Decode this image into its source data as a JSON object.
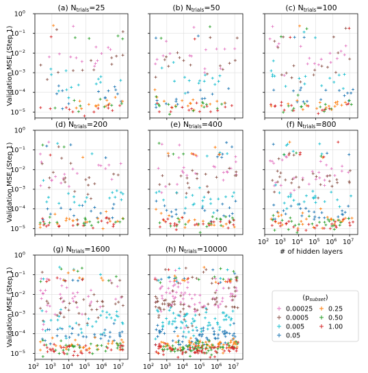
{
  "figure": {
    "ylabel": "Validation MSE (Step 1)",
    "xlabel": "# of hidden layers"
  },
  "legend": {
    "title": "(p",
    "title_sub": "subset",
    "title_close": ")",
    "placement": "lower-right-empty-panel",
    "entries": [
      {
        "label": "0.00025",
        "color": "#e377c2"
      },
      {
        "label": "0.25",
        "color": "#ff7f0e"
      },
      {
        "label": "0.0005",
        "color": "#8c564b"
      },
      {
        "label": "0.50",
        "color": "#2ca02c"
      },
      {
        "label": "0.005",
        "color": "#17becf"
      },
      {
        "label": "1.00",
        "color": "#d62728"
      },
      {
        "label": "0.05",
        "color": "#1f77b4"
      }
    ]
  },
  "chart_data": [
    {
      "type": "scatter",
      "title": "(a) N",
      "title_sub": "trials",
      "title_value": "=25",
      "n_trials": 25,
      "xscale": "log",
      "yscale": "log",
      "xlim": [
        100,
        30000000
      ],
      "ylim": [
        5e-06,
        1
      ],
      "grid": true,
      "show_ylabel": true,
      "show_xlabel": false
    },
    {
      "type": "scatter",
      "title": "(b) N",
      "title_sub": "trials",
      "title_value": "=50",
      "n_trials": 50,
      "xscale": "log",
      "yscale": "log",
      "xlim": [
        100,
        30000000
      ],
      "ylim": [
        5e-06,
        1
      ],
      "grid": true,
      "show_ylabel": false,
      "show_xlabel": false
    },
    {
      "type": "scatter",
      "title": "(c) N",
      "title_sub": "trials",
      "title_value": "=100",
      "n_trials": 100,
      "xscale": "log",
      "yscale": "log",
      "xlim": [
        100,
        30000000
      ],
      "ylim": [
        5e-06,
        1
      ],
      "grid": true,
      "show_ylabel": false,
      "show_xlabel": false
    },
    {
      "type": "scatter",
      "title": "(d) N",
      "title_sub": "trials",
      "title_value": "=200",
      "n_trials": 200,
      "xscale": "log",
      "yscale": "log",
      "xlim": [
        100,
        30000000
      ],
      "ylim": [
        5e-06,
        1
      ],
      "grid": true,
      "show_ylabel": true,
      "show_xlabel": false
    },
    {
      "type": "scatter",
      "title": "(e) N",
      "title_sub": "trials",
      "title_value": "=400",
      "n_trials": 400,
      "xscale": "log",
      "yscale": "log",
      "xlim": [
        100,
        30000000
      ],
      "ylim": [
        5e-06,
        1
      ],
      "grid": true,
      "show_ylabel": false,
      "show_xlabel": false
    },
    {
      "type": "scatter",
      "title": "(f) N",
      "title_sub": "trials",
      "title_value": "=800",
      "n_trials": 800,
      "xscale": "log",
      "yscale": "log",
      "xlim": [
        100,
        30000000
      ],
      "ylim": [
        5e-06,
        1
      ],
      "grid": true,
      "show_ylabel": false,
      "show_xlabel": true
    },
    {
      "type": "scatter",
      "title": "(g) N",
      "title_sub": "trials",
      "title_value": "=1600",
      "n_trials": 1600,
      "xscale": "log",
      "yscale": "log",
      "xlim": [
        100,
        30000000
      ],
      "ylim": [
        5e-06,
        1
      ],
      "grid": true,
      "show_ylabel": true,
      "show_xlabel": true
    },
    {
      "type": "scatter",
      "title": "(h) N",
      "title_sub": "trials",
      "title_value": "=10000",
      "n_trials": 10000,
      "xscale": "log",
      "yscale": "log",
      "xlim": [
        100,
        30000000
      ],
      "ylim": [
        5e-06,
        1
      ],
      "grid": true,
      "show_ylabel": false,
      "show_xlabel": true
    }
  ],
  "ticks": {
    "y": [
      {
        "exp": 0,
        "label": "10",
        "sup": "0"
      },
      {
        "exp": -1,
        "label": "10",
        "sup": "−1"
      },
      {
        "exp": -2,
        "label": "10",
        "sup": "−2"
      },
      {
        "exp": -3,
        "label": "10",
        "sup": "−3"
      },
      {
        "exp": -4,
        "label": "10",
        "sup": "−4"
      },
      {
        "exp": -5,
        "label": "10",
        "sup": "−5"
      }
    ],
    "x": [
      {
        "exp": 2,
        "label": "10",
        "sup": "2"
      },
      {
        "exp": 3,
        "label": "10",
        "sup": "3"
      },
      {
        "exp": 4,
        "label": "10",
        "sup": "4"
      },
      {
        "exp": 5,
        "label": "10",
        "sup": "5"
      },
      {
        "exp": 6,
        "label": "10",
        "sup": "6"
      },
      {
        "exp": 7,
        "label": "10",
        "sup": "7"
      }
    ]
  },
  "series_profiles": [
    {
      "label": "0.00025",
      "color": "#e377c2",
      "base_exp": -1.9,
      "slope": -0.55,
      "spread": 0.55
    },
    {
      "label": "0.0005",
      "color": "#8c564b",
      "base_exp": -2.3,
      "slope": -0.6,
      "spread": 0.55
    },
    {
      "label": "0.005",
      "color": "#17becf",
      "base_exp": -3.2,
      "slope": -0.35,
      "spread": 0.4
    },
    {
      "label": "0.05",
      "color": "#1f77b4",
      "base_exp": -4.0,
      "slope": -0.3,
      "spread": 0.35
    },
    {
      "label": "0.25",
      "color": "#ff7f0e",
      "base_exp": -4.5,
      "slope": -0.2,
      "spread": 0.25
    },
    {
      "label": "0.50",
      "color": "#2ca02c",
      "base_exp": -4.6,
      "slope": -0.2,
      "spread": 0.22
    },
    {
      "label": "1.00",
      "color": "#d62728",
      "base_exp": -4.7,
      "slope": -0.2,
      "spread": 0.2
    }
  ]
}
